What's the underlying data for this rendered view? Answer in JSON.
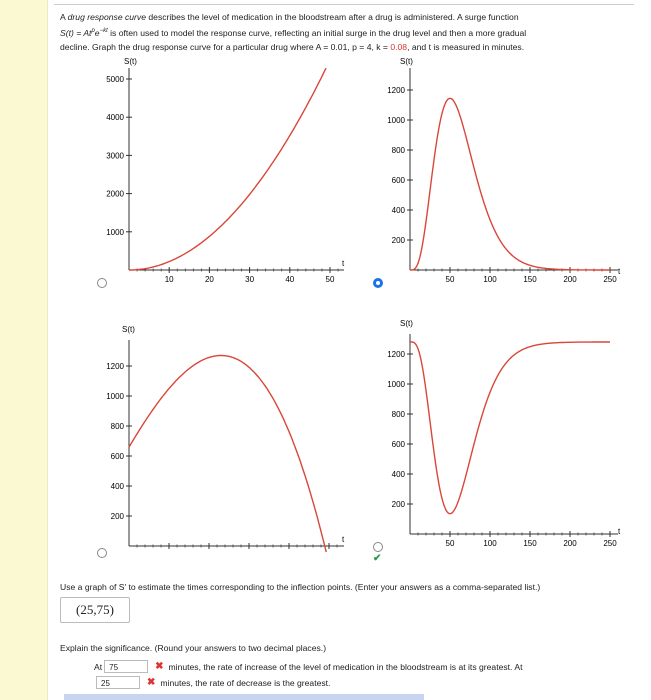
{
  "problem": {
    "line1_a": "A ",
    "line1_em": "drug response curve",
    "line1_b": " describes the level of medication in the bloodstream after a drug is administered. A surge function",
    "line2_formula": "S(t) = At",
    "line2_p": "p",
    "line2_e": "e",
    "line2_kt": "−kt",
    "line2_rest": " is often used to model the response curve, reflecting an initial surge in the drug level and then a more gradual",
    "line3_a": "decline. Graph the drug response curve for a particular drug where  A = 0.01,  p = 4,  k = ",
    "line3_k": "0.08",
    "line3_b": ",  and t is measured in minutes."
  },
  "graphs": [
    {
      "id": "a",
      "y_label": "S(t)",
      "x_label": "t",
      "x_ticks": [
        "10",
        "20",
        "30",
        "40",
        "50"
      ],
      "y_ticks": [
        "1000",
        "2000",
        "3000",
        "4000",
        "5000"
      ],
      "selected": false
    },
    {
      "id": "b",
      "y_label": "S(t)",
      "x_label": "t",
      "x_ticks": [
        "50",
        "100",
        "150",
        "200",
        "250"
      ],
      "y_ticks": [
        "200",
        "400",
        "600",
        "800",
        "1000",
        "1200"
      ],
      "selected": true
    },
    {
      "id": "c",
      "y_label": "S(t)",
      "x_label": "t",
      "x_ticks": [
        "50",
        "100",
        "150",
        "200",
        "250"
      ],
      "y_ticks": [
        "200",
        "400",
        "600",
        "800",
        "1000",
        "1200"
      ],
      "selected": false
    },
    {
      "id": "d",
      "y_label": "S(t)",
      "x_label": "t",
      "x_ticks": [
        "50",
        "100",
        "150",
        "200",
        "250"
      ],
      "y_ticks": [
        "200",
        "400",
        "600",
        "800",
        "1000",
        "1200"
      ],
      "selected": false
    }
  ],
  "curve_color": "#d9463a",
  "check_mark": "✔",
  "question": "Use a graph of S′ to estimate the times corresponding to the inflection points. (Enter your answers as a comma-separated list.)",
  "answer": "(25,75)",
  "explain": "Explain the significance. (Round your answers to two decimal places.)",
  "row1": {
    "prefix": "At",
    "value": "75",
    "text": "minutes, the rate of increase of the level of medication in the bloodstream is at its greatest. At"
  },
  "row2": {
    "value": "25",
    "text": "minutes, the rate of decrease is the greatest."
  },
  "wrong_mark": "✖"
}
